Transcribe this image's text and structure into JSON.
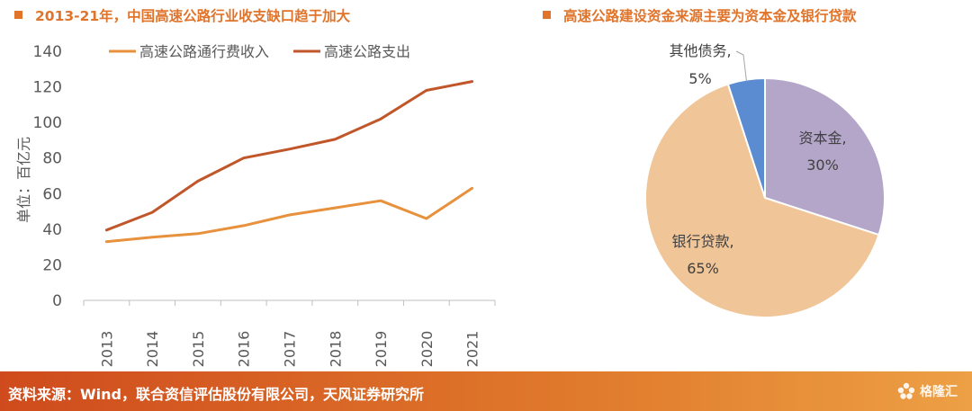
{
  "titles": {
    "left": "2013-21年，中国高速公路行业收支缺口趋于加大",
    "right": "高速公路建设资金来源主要为资本金及银行贷款"
  },
  "footer": {
    "source": "资料来源：Wind，联合资信评估股份有限公司，天风证券研究所",
    "logo_text": "格隆汇",
    "logo_icon": "flower-icon"
  },
  "colors": {
    "income": "#e8913d",
    "expense": "#c0562a",
    "accent": "#e0742b",
    "slice_capital": "#b3a6c9",
    "slice_loan": "#f0c598",
    "slice_debt": "#5b8bd0"
  },
  "chart_data": [
    {
      "type": "line",
      "title": "",
      "xlabel": "",
      "ylabel": "单位：百亿元",
      "categories": [
        "2013",
        "2014",
        "2015",
        "2016",
        "2017",
        "2018",
        "2019",
        "2020",
        "2021"
      ],
      "ylim": [
        0,
        140
      ],
      "yticks": [
        0,
        20,
        40,
        60,
        80,
        100,
        120,
        140
      ],
      "grid": false,
      "legend": "top",
      "series": [
        {
          "name": "高速公路通行费收入",
          "values": [
            33,
            35.5,
            37.5,
            42,
            48,
            52,
            56,
            46,
            63
          ]
        },
        {
          "name": "高速公路支出",
          "values": [
            39.5,
            49.5,
            67,
            80,
            85,
            90.5,
            102,
            118,
            123
          ]
        }
      ]
    },
    {
      "type": "pie",
      "title": "",
      "slices": [
        {
          "label": "资本金,",
          "pct_label": "30%",
          "value": 30
        },
        {
          "label": "银行贷款,",
          "pct_label": "65%",
          "value": 65
        },
        {
          "label": "其他债务,",
          "pct_label": "5%",
          "value": 5
        }
      ]
    }
  ]
}
